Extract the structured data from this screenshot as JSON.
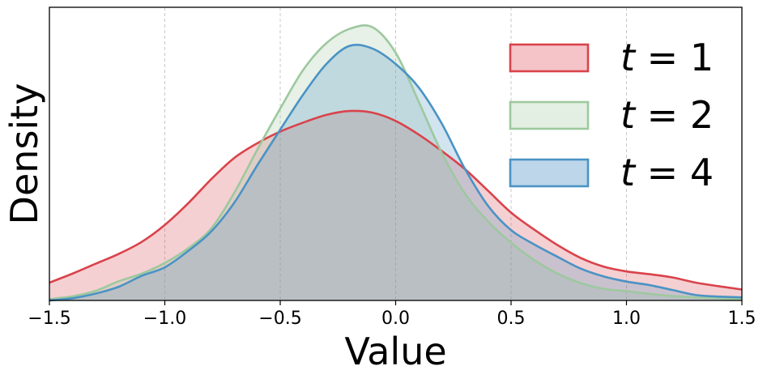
{
  "chart_data": {
    "type": "area",
    "xlabel": "Value",
    "ylabel": "Density",
    "xlim": [
      -1.5,
      1.5
    ],
    "ylim": [
      0,
      1.0
    ],
    "y_ticks_shown": false,
    "grid": "vertical-dashed",
    "legend_position": "top-right",
    "x_ticks": [
      -1.5,
      -1.0,
      -0.5,
      0.0,
      0.5,
      1.0,
      1.5
    ],
    "x_tick_labels": [
      "−1.5",
      "−1.0",
      "−0.5",
      "0.0",
      "0.5",
      "1.0",
      "1.5"
    ],
    "series": [
      {
        "name": "t = 1",
        "label_var": "t",
        "label_rest": " = 1",
        "color": "#d9434b",
        "fill": "#f4c4c8",
        "x": [
          -1.5,
          -1.4,
          -1.3,
          -1.2,
          -1.1,
          -1.0,
          -0.9,
          -0.8,
          -0.7,
          -0.6,
          -0.5,
          -0.4,
          -0.3,
          -0.2,
          -0.1,
          0.0,
          0.1,
          0.2,
          0.3,
          0.4,
          0.5,
          0.6,
          0.7,
          0.8,
          0.9,
          1.0,
          1.1,
          1.2,
          1.3,
          1.4,
          1.5
        ],
        "y": [
          0.065,
          0.098,
          0.134,
          0.17,
          0.214,
          0.276,
          0.354,
          0.442,
          0.52,
          0.574,
          0.617,
          0.65,
          0.678,
          0.692,
          0.686,
          0.656,
          0.606,
          0.546,
          0.48,
          0.401,
          0.321,
          0.259,
          0.203,
          0.156,
          0.124,
          0.106,
          0.096,
          0.084,
          0.065,
          0.052,
          0.04
        ]
      },
      {
        "name": "t = 2",
        "label_var": "t",
        "label_rest": " = 2",
        "color": "#9ec89f",
        "fill": "#e2efe2",
        "x": [
          -1.5,
          -1.4,
          -1.3,
          -1.2,
          -1.1,
          -1.0,
          -0.9,
          -0.8,
          -0.7,
          -0.6,
          -0.5,
          -0.4,
          -0.3,
          -0.2,
          -0.1,
          0.0,
          0.1,
          0.2,
          0.3,
          0.4,
          0.5,
          0.6,
          0.7,
          0.8,
          0.9,
          1.0,
          1.1,
          1.2,
          1.3,
          1.4,
          1.5
        ],
        "y": [
          0.005,
          0.015,
          0.035,
          0.07,
          0.098,
          0.137,
          0.19,
          0.262,
          0.392,
          0.55,
          0.701,
          0.843,
          0.94,
          0.992,
          0.998,
          0.905,
          0.726,
          0.539,
          0.391,
          0.289,
          0.211,
          0.148,
          0.099,
          0.064,
          0.043,
          0.034,
          0.024,
          0.016,
          0.011,
          0.008,
          0.004
        ]
      },
      {
        "name": "t = 4",
        "label_var": "t",
        "label_rest": " = 4",
        "color": "#4a93c4",
        "fill": "#bdd6ea",
        "x": [
          -1.5,
          -1.4,
          -1.3,
          -1.2,
          -1.1,
          -1.0,
          -0.9,
          -0.8,
          -0.7,
          -0.6,
          -0.5,
          -0.4,
          -0.3,
          -0.2,
          -0.1,
          0.0,
          0.1,
          0.2,
          0.3,
          0.4,
          0.5,
          0.6,
          0.7,
          0.8,
          0.9,
          1.0,
          1.1,
          1.2,
          1.3,
          1.4,
          1.5
        ],
        "y": [
          0.0,
          0.008,
          0.025,
          0.05,
          0.09,
          0.121,
          0.18,
          0.251,
          0.356,
          0.493,
          0.624,
          0.753,
          0.864,
          0.93,
          0.92,
          0.864,
          0.778,
          0.646,
          0.481,
          0.346,
          0.257,
          0.205,
          0.16,
          0.117,
          0.088,
          0.069,
          0.056,
          0.038,
          0.02,
          0.014,
          0.011
        ]
      }
    ]
  }
}
